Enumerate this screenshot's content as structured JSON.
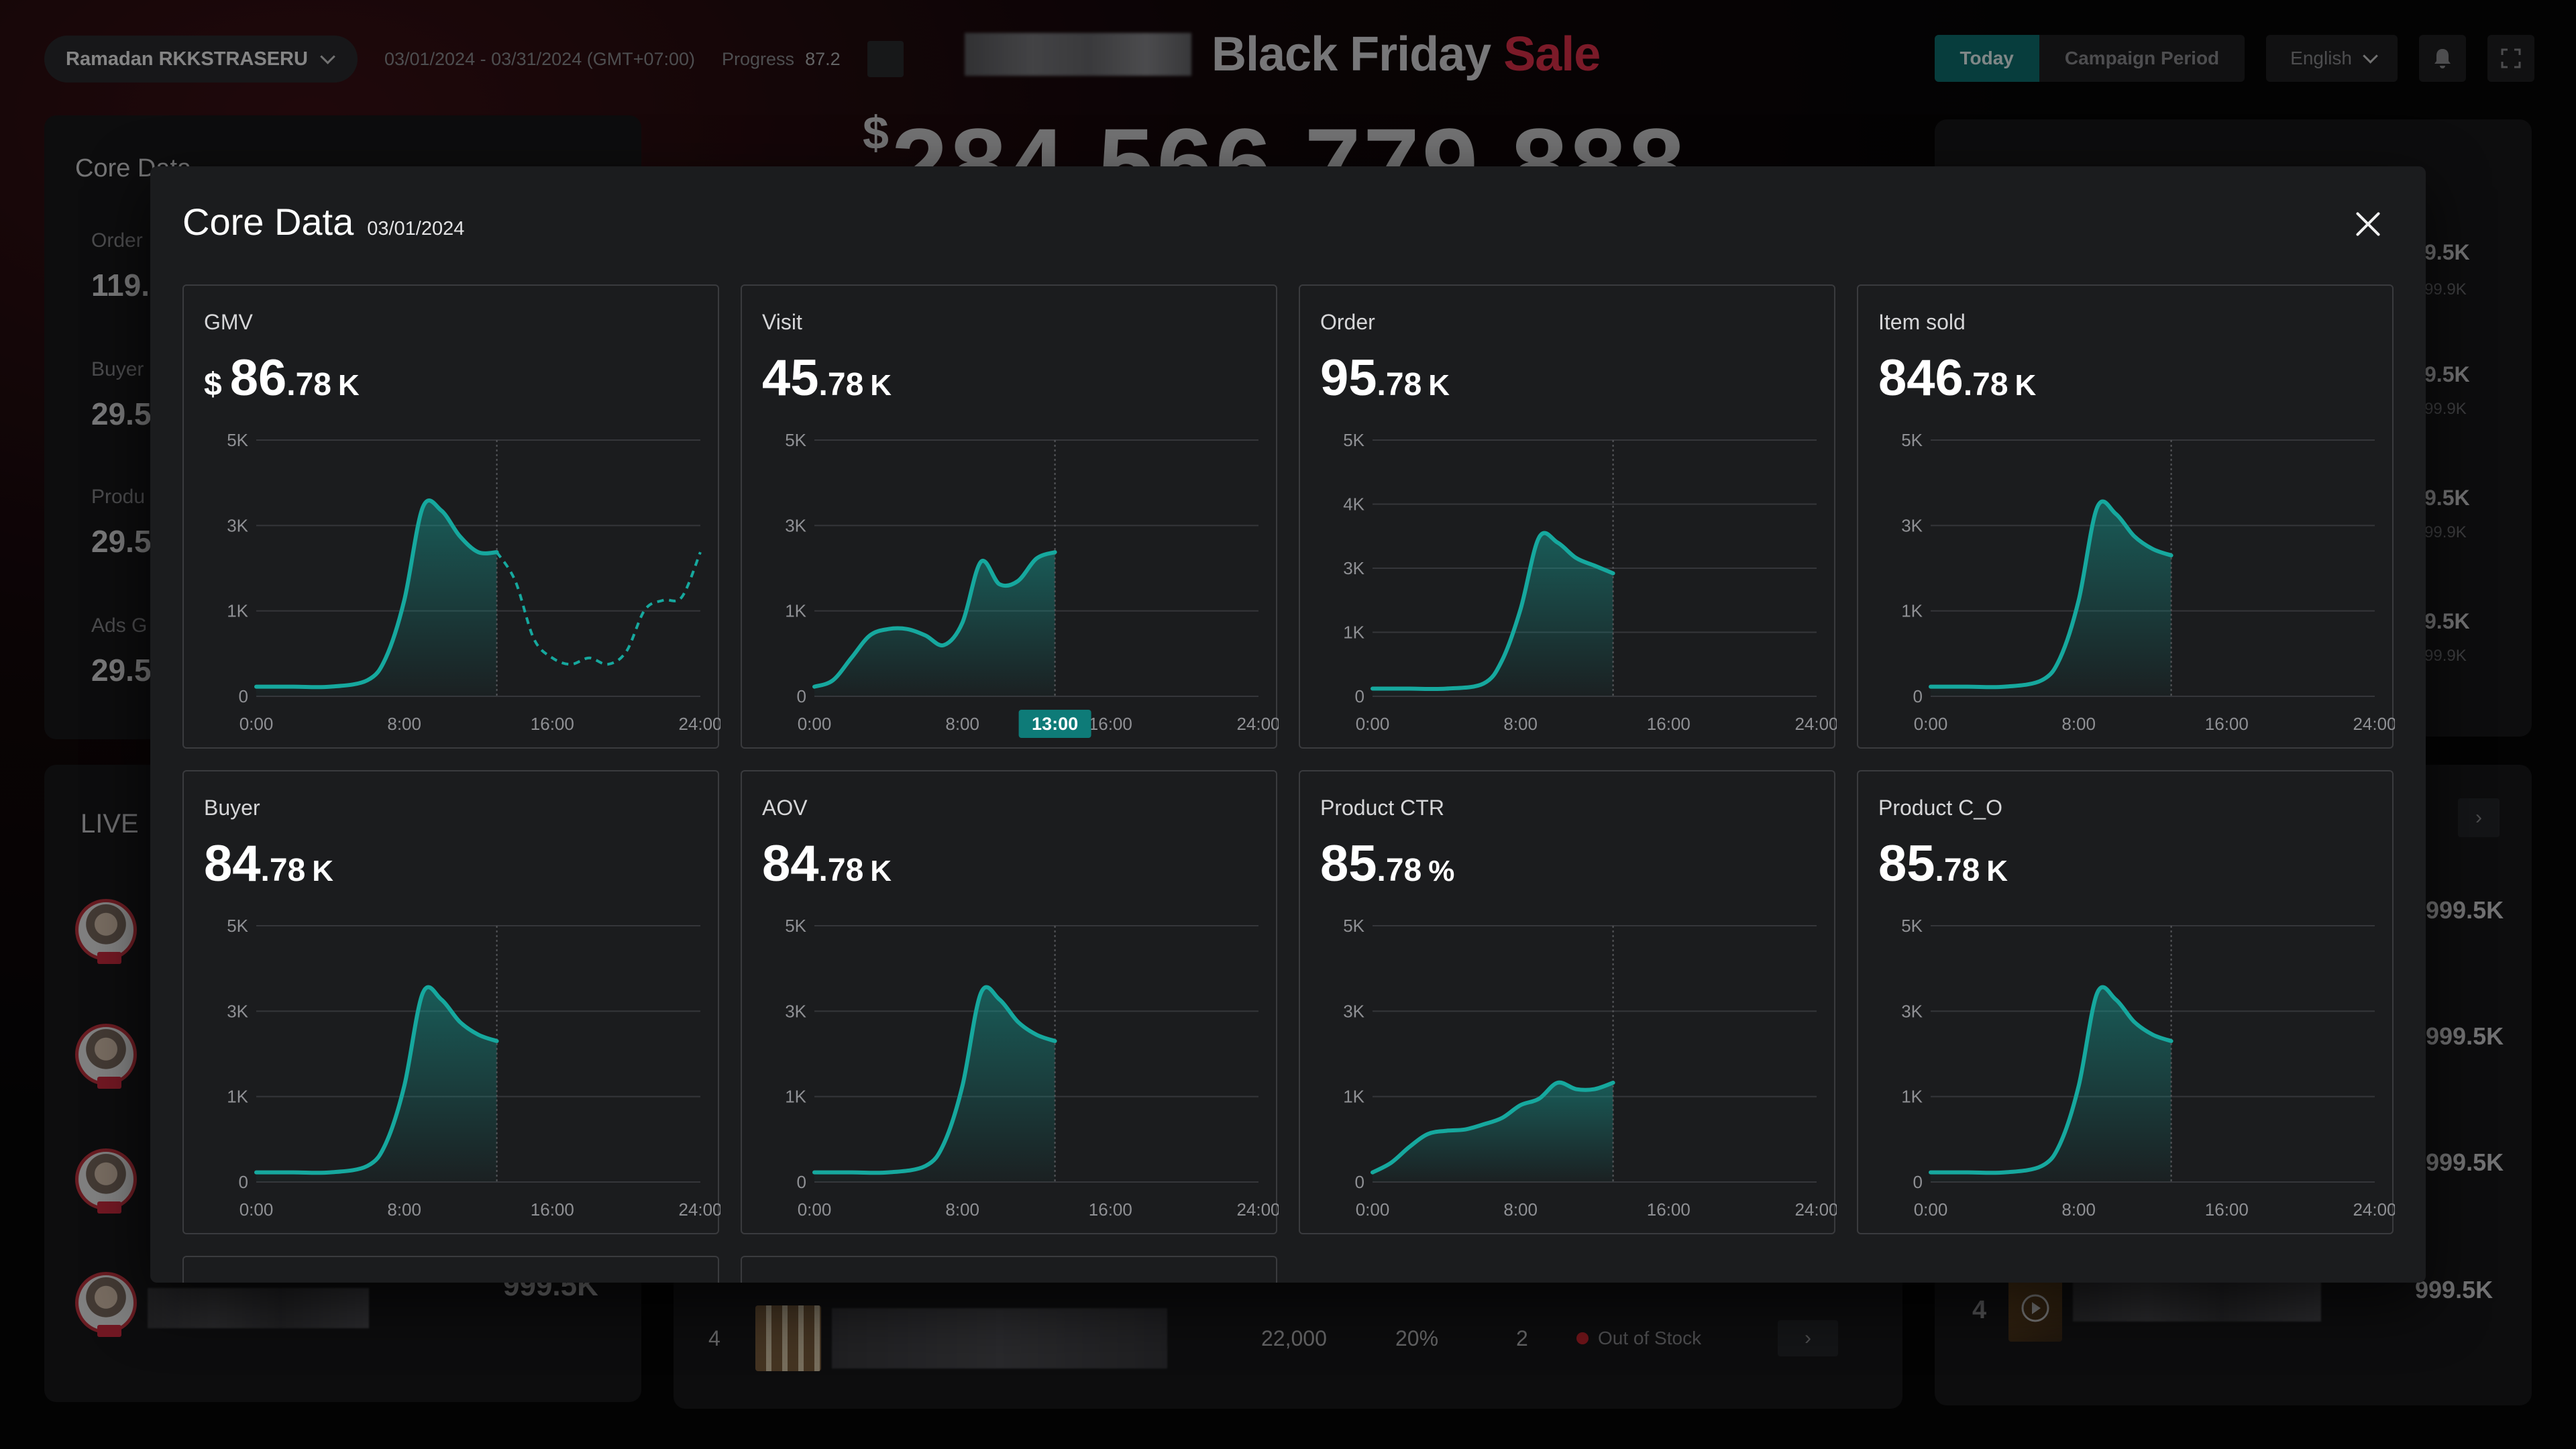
{
  "header": {
    "campaign_select": "Ramadan RKKSTRASERU",
    "date_range": "03/01/2024 - 03/31/2024 (GMT+07:00)",
    "progress_label": "Progress",
    "progress_value": "87.2",
    "brand_title": "Black Friday",
    "brand_sale": "Sale",
    "period_tabs": [
      "Today",
      "Campaign Period"
    ],
    "active_period": "Today",
    "language": "English",
    "big_gmv_currency": "$",
    "big_gmv": "284,566,779,888"
  },
  "background": {
    "core_title": "Core Data",
    "core_kpis": [
      {
        "label": "Order",
        "value": "119.5"
      },
      {
        "label": "Buyer",
        "value": "29.5"
      },
      {
        "label": "Produ",
        "value": "29.5"
      },
      {
        "label": "Ads G",
        "value": "29.5"
      }
    ],
    "live_title": "LIVE",
    "live_bottom_value": "999.5K",
    "right_values": [
      {
        "main": "9.5K",
        "sub": "99.9K"
      },
      {
        "main": "9.5K",
        "sub": "99.9K"
      },
      {
        "main": "9.5K",
        "sub": "99.9K"
      },
      {
        "main": "9.5K",
        "sub": "99.9K"
      }
    ],
    "right_list_values": [
      "999.5K",
      "999.5K",
      "999.5K",
      "999.5K"
    ],
    "table_row": {
      "rank": "4",
      "price": "22,000",
      "percent": "20%",
      "count": "2",
      "status": "Out of Stock"
    },
    "right_rank": "4"
  },
  "modal": {
    "title": "Core Data",
    "date": "03/01/2024",
    "x_ticks": [
      "0:00",
      "8:00",
      "16:00",
      "24:00"
    ],
    "hover_label": "13:00",
    "accent_color": "#16a89e",
    "cards": [
      {
        "label": "GMV",
        "currency": "$",
        "main": "86",
        "dec": ".78",
        "unit": "K",
        "y_ticks": [
          "0",
          "1K",
          "3K",
          "5K"
        ],
        "ylim": [
          0,
          4
        ],
        "forecast": true
      },
      {
        "label": "Visit",
        "currency": "",
        "main": "45",
        "dec": ".78",
        "unit": "K",
        "y_ticks": [
          "0",
          "1K",
          "3K",
          "5K"
        ],
        "ylim": [
          0,
          4
        ],
        "hover": true
      },
      {
        "label": "Order",
        "currency": "",
        "main": "95",
        "dec": ".78",
        "unit": "K",
        "y_ticks": [
          "0",
          "1K",
          "3K",
          "4K",
          "5K"
        ],
        "ylim": [
          0,
          5
        ]
      },
      {
        "label": "Item sold",
        "currency": "",
        "main": "846",
        "dec": ".78",
        "unit": "K",
        "y_ticks": [
          "0",
          "1K",
          "3K",
          "5K"
        ],
        "ylim": [
          0,
          4
        ]
      },
      {
        "label": "Buyer",
        "currency": "",
        "main": "84",
        "dec": ".78",
        "unit": "K",
        "y_ticks": [
          "0",
          "1K",
          "3K",
          "5K"
        ],
        "ylim": [
          0,
          4
        ]
      },
      {
        "label": "AOV",
        "currency": "",
        "main": "84",
        "dec": ".78",
        "unit": "K",
        "y_ticks": [
          "0",
          "1K",
          "3K",
          "5K"
        ],
        "ylim": [
          0,
          4
        ]
      },
      {
        "label": "Product CTR",
        "currency": "",
        "main": "85",
        "dec": ".78",
        "unit": "%",
        "y_ticks": [
          "0",
          "1K",
          "3K",
          "5K"
        ],
        "ylim": [
          0,
          4
        ]
      },
      {
        "label": "Product C_O",
        "currency": "",
        "main": "85",
        "dec": ".78",
        "unit": "K",
        "y_ticks": [
          "0",
          "1K",
          "3K",
          "5K"
        ],
        "ylim": [
          0,
          4
        ]
      }
    ]
  },
  "chart_data": [
    {
      "type": "area",
      "title": "GMV",
      "x": [
        0,
        2,
        4,
        6,
        7,
        8,
        9,
        10,
        11,
        12,
        13
      ],
      "y": [
        0.15,
        0.15,
        0.15,
        0.25,
        0.6,
        1.5,
        2.95,
        2.9,
        2.5,
        2.25,
        2.25
      ],
      "forecast": {
        "x": [
          13,
          14,
          15,
          16,
          17,
          18,
          19,
          20,
          21,
          22,
          23,
          24
        ],
        "y": [
          2.25,
          1.8,
          0.9,
          0.6,
          0.5,
          0.6,
          0.5,
          0.7,
          1.35,
          1.5,
          1.55,
          2.25
        ]
      },
      "ylim": [
        0,
        4
      ]
    },
    {
      "type": "area",
      "title": "Visit",
      "x": [
        0,
        1,
        2,
        3,
        4,
        5,
        6,
        7,
        8,
        9,
        10,
        11,
        12,
        13
      ],
      "y": [
        0.15,
        0.25,
        0.6,
        0.95,
        1.05,
        1.05,
        0.95,
        0.8,
        1.15,
        2.1,
        1.75,
        1.8,
        2.15,
        2.25
      ],
      "ylim": [
        0,
        4
      ]
    },
    {
      "type": "area",
      "title": "Order",
      "x": [
        0,
        2,
        4,
        6,
        7,
        8,
        9,
        10,
        11,
        12,
        13
      ],
      "y": [
        0.15,
        0.15,
        0.15,
        0.25,
        0.7,
        1.7,
        3.1,
        3.0,
        2.7,
        2.55,
        2.4
      ],
      "ylim": [
        0,
        5
      ]
    },
    {
      "type": "area",
      "title": "Item sold",
      "x": [
        0,
        2,
        4,
        6,
        7,
        8,
        9,
        10,
        11,
        12,
        13
      ],
      "y": [
        0.15,
        0.15,
        0.15,
        0.25,
        0.6,
        1.5,
        2.95,
        2.85,
        2.5,
        2.3,
        2.2
      ],
      "ylim": [
        0,
        4
      ]
    },
    {
      "type": "area",
      "title": "Buyer",
      "x": [
        0,
        2,
        4,
        6,
        7,
        8,
        9,
        10,
        11,
        12,
        13
      ],
      "y": [
        0.15,
        0.15,
        0.15,
        0.25,
        0.6,
        1.5,
        2.95,
        2.85,
        2.5,
        2.3,
        2.2
      ],
      "ylim": [
        0,
        4
      ]
    },
    {
      "type": "area",
      "title": "AOV",
      "x": [
        0,
        2,
        4,
        6,
        7,
        8,
        9,
        10,
        11,
        12,
        13
      ],
      "y": [
        0.15,
        0.15,
        0.15,
        0.25,
        0.6,
        1.5,
        2.95,
        2.85,
        2.5,
        2.3,
        2.2
      ],
      "ylim": [
        0,
        4
      ]
    },
    {
      "type": "area",
      "title": "Product CTR",
      "x": [
        0,
        1,
        2,
        3,
        4,
        5,
        6,
        7,
        8,
        9,
        10,
        11,
        12,
        13
      ],
      "y": [
        0.15,
        0.3,
        0.55,
        0.75,
        0.8,
        0.82,
        0.9,
        1.0,
        1.2,
        1.3,
        1.55,
        1.45,
        1.45,
        1.55
      ],
      "ylim": [
        0,
        4
      ]
    },
    {
      "type": "area",
      "title": "Product C_O",
      "x": [
        0,
        2,
        4,
        6,
        7,
        8,
        9,
        10,
        11,
        12,
        13
      ],
      "y": [
        0.15,
        0.15,
        0.15,
        0.25,
        0.6,
        1.5,
        2.95,
        2.85,
        2.5,
        2.3,
        2.2
      ],
      "ylim": [
        0,
        4
      ]
    }
  ]
}
